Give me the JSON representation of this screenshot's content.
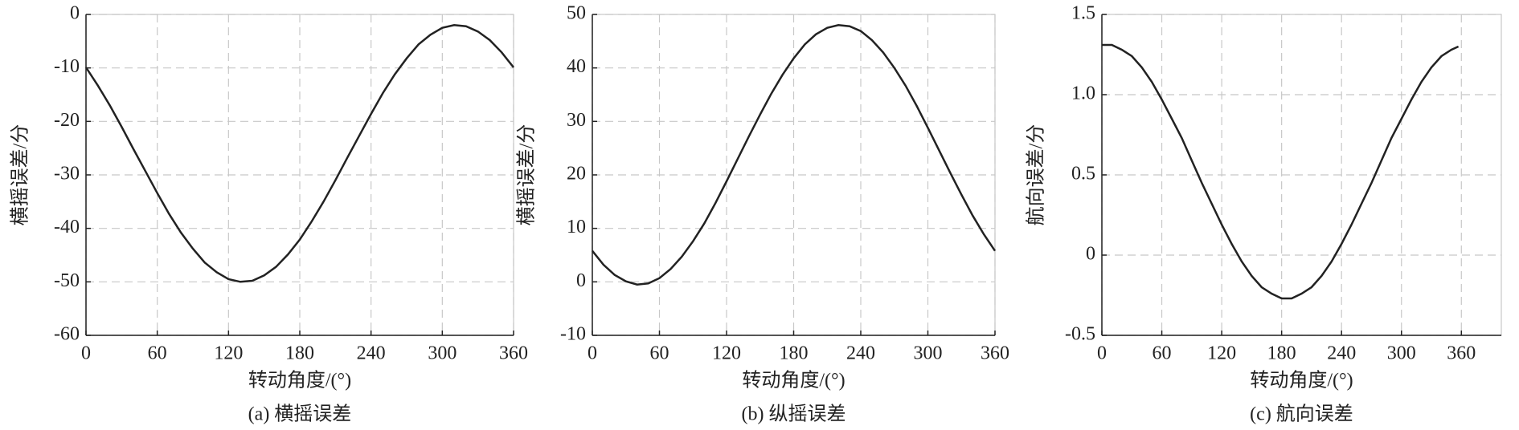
{
  "chart_data": [
    {
      "type": "line",
      "caption": "(a) 横摇误差",
      "xlabel": "转动角度/(°)",
      "ylabel": "横摇误差/分",
      "color": "#222222",
      "grid": true,
      "xlim": [
        0,
        360
      ],
      "xticks": [
        0,
        60,
        120,
        180,
        240,
        300,
        360
      ],
      "ylim": [
        -60,
        0
      ],
      "yticks": [
        0,
        -10,
        -20,
        -30,
        -40,
        -50,
        -60
      ],
      "x": [
        0,
        10,
        20,
        30,
        40,
        50,
        60,
        70,
        80,
        90,
        100,
        110,
        120,
        130,
        140,
        150,
        160,
        170,
        180,
        190,
        200,
        210,
        220,
        230,
        240,
        250,
        260,
        270,
        280,
        290,
        300,
        310,
        320,
        330,
        340,
        350,
        360
      ],
      "values": [
        -9.9,
        -13.3,
        -17.0,
        -21.0,
        -25.2,
        -29.3,
        -33.4,
        -37.3,
        -40.8,
        -43.8,
        -46.4,
        -48.2,
        -49.5,
        -50.0,
        -49.8,
        -48.8,
        -47.2,
        -44.9,
        -42.1,
        -38.7,
        -35.0,
        -31.0,
        -26.8,
        -22.7,
        -18.6,
        -14.7,
        -11.2,
        -8.2,
        -5.6,
        -3.8,
        -2.5,
        -2.0,
        -2.2,
        -3.2,
        -4.8,
        -7.1,
        -9.9
      ]
    },
    {
      "type": "line",
      "caption": "(b) 纵摇误差",
      "xlabel": "转动角度/(°)",
      "ylabel": "横摇误差/分",
      "color": "#222222",
      "grid": true,
      "xlim": [
        0,
        360
      ],
      "xticks": [
        0,
        60,
        120,
        180,
        240,
        300,
        360
      ],
      "ylim": [
        -10,
        50
      ],
      "yticks": [
        50,
        40,
        30,
        20,
        10,
        0,
        -10
      ],
      "x": [
        0,
        10,
        20,
        30,
        40,
        50,
        60,
        70,
        80,
        90,
        100,
        110,
        120,
        130,
        140,
        150,
        160,
        170,
        180,
        190,
        200,
        210,
        220,
        230,
        240,
        250,
        260,
        270,
        280,
        290,
        300,
        310,
        320,
        330,
        340,
        350,
        360
      ],
      "values": [
        5.8,
        3.2,
        1.3,
        0.1,
        -0.5,
        -0.3,
        0.7,
        2.4,
        4.7,
        7.6,
        10.9,
        14.7,
        18.8,
        23.0,
        27.2,
        31.3,
        35.2,
        38.7,
        41.8,
        44.4,
        46.3,
        47.5,
        48.0,
        47.8,
        46.9,
        45.2,
        42.9,
        40.0,
        36.7,
        32.9,
        28.8,
        24.6,
        20.4,
        16.3,
        12.4,
        8.9,
        5.8
      ]
    },
    {
      "type": "line",
      "caption": "(c) 航向误差",
      "xlabel": "转动角度/(°)",
      "ylabel": "航向误差/分",
      "color": "#222222",
      "grid": true,
      "xlim": [
        0,
        400
      ],
      "xticks": [
        0,
        60,
        120,
        180,
        240,
        300,
        360
      ],
      "ylim": [
        -0.5,
        1.5
      ],
      "yticks": [
        1.5,
        {
          "value": 1,
          "label": "1.0"
        },
        0.5,
        0,
        -0.5
      ],
      "x": [
        0,
        10,
        20,
        30,
        40,
        50,
        60,
        70,
        80,
        90,
        100,
        110,
        120,
        130,
        140,
        150,
        160,
        170,
        180,
        190,
        200,
        210,
        220,
        230,
        240,
        250,
        260,
        270,
        280,
        290,
        300,
        310,
        320,
        330,
        340,
        350,
        357
      ],
      "values": [
        1.31,
        1.31,
        1.28,
        1.24,
        1.17,
        1.08,
        0.97,
        0.85,
        0.73,
        0.59,
        0.45,
        0.32,
        0.19,
        0.07,
        -0.04,
        -0.13,
        -0.2,
        -0.24,
        -0.27,
        -0.27,
        -0.24,
        -0.2,
        -0.13,
        -0.04,
        0.07,
        0.19,
        0.32,
        0.45,
        0.59,
        0.73,
        0.85,
        0.97,
        1.08,
        1.17,
        1.24,
        1.28,
        1.3
      ]
    }
  ]
}
